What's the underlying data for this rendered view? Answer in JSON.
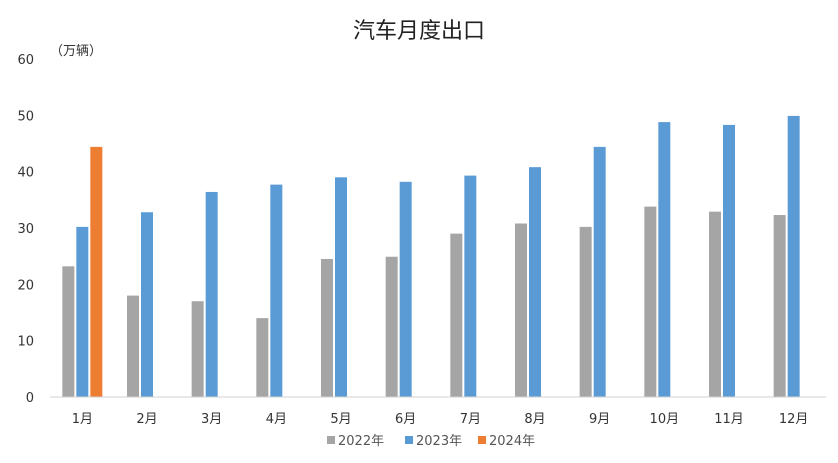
{
  "chart_data": {
    "type": "bar",
    "title": "汽车月度出口",
    "unit_label": "（万辆）",
    "categories": [
      "1月",
      "2月",
      "3月",
      "4月",
      "5月",
      "6月",
      "7月",
      "8月",
      "9月",
      "10月",
      "11月",
      "12月"
    ],
    "ylim": [
      0,
      60
    ],
    "yticks": [
      0,
      10,
      20,
      30,
      40,
      50,
      60
    ],
    "grid": false,
    "legend_position": "bottom",
    "series": [
      {
        "name": "2022年",
        "color": "#a5a5a5",
        "values": [
          23.2,
          18.0,
          17.0,
          14.0,
          24.5,
          24.9,
          29.0,
          30.8,
          30.2,
          33.8,
          32.9,
          32.3
        ]
      },
      {
        "name": "2023年",
        "color": "#5b9bd5",
        "values": [
          30.2,
          32.8,
          36.4,
          37.7,
          39.0,
          38.2,
          39.3,
          40.8,
          44.4,
          48.8,
          48.3,
          49.9
        ]
      },
      {
        "name": "2024年",
        "color": "#ed7d31",
        "values": [
          44.4,
          null,
          null,
          null,
          null,
          null,
          null,
          null,
          null,
          null,
          null,
          null
        ]
      }
    ]
  }
}
